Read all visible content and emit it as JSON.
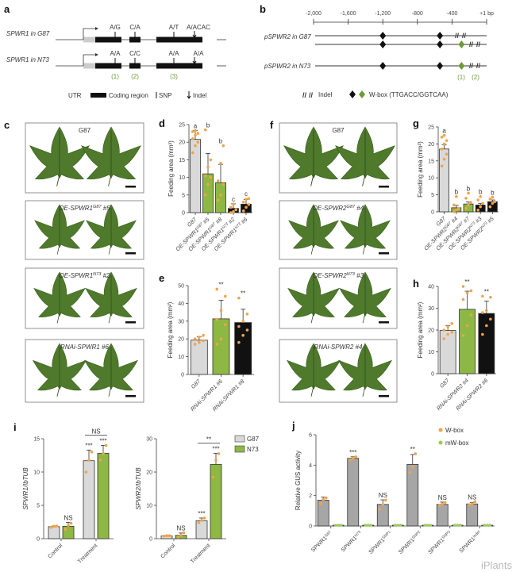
{
  "panel_a": {
    "letter": "a",
    "rows": [
      {
        "label": "SPWR1 in G87",
        "alleles": [
          "A/G",
          "C/A",
          "A/T",
          "A/ACAC"
        ]
      },
      {
        "label": "SPWR1 in N73",
        "alleles": [
          "A/A",
          "C/C",
          "A/A",
          "A/A"
        ]
      }
    ],
    "markers": [
      "(1)",
      "(2)",
      "(3)"
    ],
    "legend": {
      "utr": "UTR",
      "coding": "Coding region",
      "snp": "SNP",
      "indel": "Indel"
    }
  },
  "panel_b": {
    "letter": "b",
    "scale": [
      "-2,000",
      "-1,600",
      "-1,200",
      "-800",
      "-400",
      "+1 bp"
    ],
    "rows": [
      {
        "label": "pSPWR2 in G87"
      },
      {
        "label": "pSPWR2 in N73"
      }
    ],
    "markers": [
      "(1)",
      "(2)"
    ],
    "legend": {
      "indel": "Indel",
      "wbox": "W-box (TTGACC/GGTCAA)"
    },
    "colors": {
      "wbox_black": "#111111",
      "wbox_green": "#6e9a3a"
    }
  },
  "leaf_panels": [
    {
      "letter": "c",
      "labels": [
        {
          "t": "G87"
        },
        {
          "t": "OE-SPWR1",
          "sup": "G87",
          "s": " #5"
        },
        {
          "t": "OE-SPWR1",
          "sup": "N73",
          "s": " #2"
        },
        {
          "t": "RNAi-SPWR1 #6"
        }
      ]
    },
    {
      "letter": "f",
      "labels": [
        {
          "t": "G87"
        },
        {
          "t": "OE-SPWR2",
          "sup": "G87",
          "s": " #4"
        },
        {
          "t": "OE-SPWR2",
          "sup": "N73",
          "s": " #3"
        },
        {
          "t": "RNAi-SPWR2 #4"
        }
      ]
    }
  ],
  "legends": {
    "i": [
      {
        "label": "G87",
        "color": "#d9d9d9"
      },
      {
        "label": "N73",
        "color": "#8db843"
      }
    ],
    "j": [
      {
        "label": "W-box",
        "color": "#f0a44b"
      },
      {
        "label": "mW-box",
        "color": "#9ccb5a"
      }
    ]
  },
  "watermark": "iPlants",
  "chart_data": [
    {
      "panel": "d",
      "type": "bar",
      "ylabel": "Feeding area (mm²)",
      "ylim": [
        0,
        25
      ],
      "yticks": [
        "0",
        "5",
        "10",
        "15",
        "20",
        "25"
      ],
      "categories": [
        {
          "t": "G87"
        },
        {
          "t": "OE-SPWR1",
          "sup": "G87",
          "s": " #5"
        },
        {
          "t": "OE-SPWR1",
          "sup": "G87",
          "s": " #8"
        },
        {
          "t": "OE-SPWR1",
          "sup": "N73",
          "s": " #2"
        },
        {
          "t": "OE-SPWR1",
          "sup": "N73",
          "s": " #6"
        }
      ],
      "series": [
        {
          "name": "Feeding area",
          "colors": [
            "#d9d9d9",
            "#8db843",
            "#8db843",
            "#111111",
            "#111111"
          ],
          "values": [
            20.8,
            11.0,
            8.5,
            1.2,
            2.4
          ],
          "errors": [
            2.5,
            5.8,
            5.2,
            1.3,
            1.3
          ],
          "labels": [
            "a",
            "b",
            "b",
            "c",
            "c"
          ],
          "points": [
            [
              17,
              19,
              20,
              21,
              22,
              22.5,
              23,
              23.3
            ],
            [
              5,
              8,
              10,
              10.5,
              13,
              15,
              23.5
            ],
            [
              3.5,
              5,
              8,
              9,
              14,
              19
            ],
            [
              0,
              0.3,
              0.8,
              1.5,
              2.4
            ],
            [
              0.5,
              1.5,
              2.3,
              3,
              3.8,
              4
            ]
          ]
        }
      ]
    },
    {
      "panel": "e",
      "type": "bar",
      "ylabel": "Feeding area (mm²)",
      "ylim": [
        0,
        50
      ],
      "yticks": [
        "0",
        "10",
        "20",
        "30",
        "40",
        "50"
      ],
      "categories": [
        {
          "t": "G87"
        },
        {
          "t": "RNAi-SPWR1 #6"
        },
        {
          "t": "RNAi-SPWR1 #8"
        }
      ],
      "series": [
        {
          "name": "Feeding area",
          "colors": [
            "#d9d9d9",
            "#8db843",
            "#111111"
          ],
          "values": [
            19.3,
            31.3,
            29.2
          ],
          "errors": [
            2.0,
            10.5,
            7.5
          ],
          "labels": [
            "",
            "**",
            "**"
          ],
          "points": [
            [
              17,
              18,
              19,
              20,
              21,
              22
            ],
            [
              17,
              20,
              28,
              31,
              36,
              44,
              48
            ],
            [
              18,
              22,
              25,
              27,
              30,
              34,
              43
            ]
          ]
        }
      ]
    },
    {
      "panel": "g",
      "type": "bar",
      "ylabel": "Feeding area (mm²)",
      "ylim": [
        0,
        25
      ],
      "yticks": [
        "0",
        "5",
        "10",
        "15",
        "20",
        "25"
      ],
      "categories": [
        {
          "t": "G87"
        },
        {
          "t": "OE-SPWR2",
          "sup": "G87",
          "s": " #4"
        },
        {
          "t": "OE-SPWR2",
          "sup": "G87",
          "s": " #7"
        },
        {
          "t": "OE-SPWR2",
          "sup": "N73",
          "s": " #3"
        },
        {
          "t": "OE-SPWR2",
          "sup": "N73",
          "s": " #5"
        }
      ],
      "series": [
        {
          "name": "Feeding area",
          "colors": [
            "#d9d9d9",
            "#8db843",
            "#8db843",
            "#111111",
            "#111111"
          ],
          "values": [
            18.5,
            1.2,
            2.3,
            2.0,
            3.0
          ],
          "errors": [
            1.2,
            0.7,
            0.6,
            0.5,
            0.5
          ],
          "labels": [
            "a",
            "b",
            "b",
            "b",
            "b"
          ],
          "points": [
            [
              13.5,
              15.5,
              17,
              18.5,
              20,
              21,
              22,
              22.5
            ],
            [
              0,
              0.5,
              1,
              2,
              4.5
            ],
            [
              1,
              2,
              2.8,
              4,
              5.5
            ],
            [
              0.5,
              1.5,
              2.5,
              3.5,
              4.5
            ],
            [
              1.5,
              2.5,
              3,
              3.8,
              4.3
            ]
          ]
        }
      ]
    },
    {
      "panel": "h",
      "type": "bar",
      "ylabel": "Feeding area (mm²)",
      "ylim": [
        0,
        40
      ],
      "yticks": [
        "0",
        "10",
        "20",
        "30",
        "40"
      ],
      "categories": [
        {
          "t": "G87"
        },
        {
          "t": "RNAi-SPWR2 #4"
        },
        {
          "t": "RNAi-SPWR2 #6"
        }
      ],
      "series": [
        {
          "name": "Feeding area",
          "colors": [
            "#d9d9d9",
            "#8db843",
            "#111111"
          ],
          "values": [
            19.8,
            29.5,
            27.6
          ],
          "errors": [
            2.3,
            8.3,
            5.7
          ],
          "labels": [
            "",
            "**",
            "**"
          ],
          "points": [
            [
              16,
              18,
              19,
              20,
              21.5,
              23
            ],
            [
              17.5,
              22,
              27,
              34,
              37,
              38,
              40
            ],
            [
              18,
              22,
              25,
              28,
              29,
              35,
              35.5
            ]
          ]
        }
      ]
    },
    {
      "panel": "i",
      "type": "bar",
      "ylabel": "SPWR1/IbTUB",
      "ylim": [
        0,
        15
      ],
      "yticks": [
        "0",
        "5",
        "10",
        "15"
      ],
      "categories": [
        {
          "t": "Control"
        },
        {
          "t": "Treatment"
        }
      ],
      "series": [
        {
          "name": "G87",
          "color": "#d9d9d9",
          "values": [
            1.8,
            11.7
          ],
          "errors": [
            0.1,
            1.6
          ],
          "labels": [
            "",
            "***"
          ],
          "points": [
            [
              1.7,
              1.85,
              1.9
            ],
            [
              10,
              11.8,
              13
            ]
          ]
        },
        {
          "name": "N73",
          "color": "#8db843",
          "values": [
            1.85,
            12.8
          ],
          "errors": [
            0.6,
            1.2
          ],
          "labels": [
            "NS",
            "***"
          ],
          "points": [
            [
              1.4,
              2.0,
              2.3
            ],
            [
              11.8,
              12.8,
              14
            ]
          ]
        }
      ],
      "brackets": [
        {
          "category": 1,
          "label": "NS"
        }
      ]
    },
    {
      "panel": "i",
      "type": "bar",
      "ylabel": "SPWR2/IbTUB",
      "ylim": [
        0,
        30
      ],
      "yticks": [
        "0",
        "10",
        "20",
        "30"
      ],
      "categories": [
        {
          "t": "Control"
        },
        {
          "t": "Treatment"
        }
      ],
      "series": [
        {
          "name": "G87",
          "color": "#d9d9d9",
          "values": [
            0.8,
            5.4
          ],
          "errors": [
            0.1,
            0.8
          ],
          "labels": [
            "",
            "***"
          ],
          "points": [
            [
              0.8,
              0.9,
              0.9
            ],
            [
              4.8,
              5.5,
              6.2
            ]
          ]
        },
        {
          "name": "N73",
          "color": "#8db843",
          "values": [
            1.0,
            22.3
          ],
          "errors": [
            0.7,
            3.3
          ],
          "labels": [
            "NS",
            "***"
          ],
          "points": [
            [
              0.5,
              1.0,
              1.8
            ],
            [
              18.5,
              23.5,
              25.5
            ]
          ]
        }
      ],
      "brackets": [
        {
          "category": 1,
          "label": "**"
        }
      ]
    },
    {
      "panel": "j",
      "type": "bar",
      "ylabel": "Relative GUS activity",
      "ylim": [
        0,
        6
      ],
      "yticks": [
        "0",
        "2",
        "4",
        "6"
      ],
      "categories": [
        {
          "t": "SPWR1",
          "sup": "G87"
        },
        {
          "t": "SPWR1",
          "sup": "N73"
        },
        {
          "t": "SPWR1",
          "sup": "SNP1"
        },
        {
          "t": "SPWR1",
          "sup": "SNP2"
        },
        {
          "t": "SPWR1",
          "sup": "SNP3"
        },
        {
          "t": "SPWR1",
          "sup": "Indel"
        }
      ],
      "series": [
        {
          "name": "W-box",
          "color": "#a6a6a6",
          "point_color": "#f0a44b",
          "values": [
            1.7,
            4.45,
            1.42,
            4.05,
            1.42,
            1.45
          ],
          "errors": [
            0.2,
            0.1,
            0.3,
            0.65,
            0.15,
            0.1
          ],
          "labels": [
            "",
            "***",
            "NS",
            "**",
            "NS",
            "NS"
          ],
          "points": [
            [
              1.45,
              1.75,
              1.85
            ],
            [
              4.35,
              4.45,
              4.55
            ],
            [
              1.1,
              1.4,
              1.7
            ],
            [
              3.5,
              3.9,
              4.75
            ],
            [
              1.35,
              1.45,
              1.55
            ],
            [
              1.4,
              1.45,
              1.6
            ]
          ]
        },
        {
          "name": "mW-box",
          "color": "#a6a6a6",
          "point_color": "#9ccb5a",
          "values": [
            0.05,
            0.05,
            0.05,
            0.05,
            0.05,
            0.05
          ],
          "errors": [
            0,
            0,
            0,
            0,
            0,
            0
          ],
          "labels": [
            "",
            "",
            "",
            "",
            "",
            ""
          ],
          "points": [
            [
              0.05,
              0.05,
              0.05
            ],
            [
              0.05,
              0.05,
              0.05
            ],
            [
              0.05,
              0.05,
              0.05
            ],
            [
              0.05,
              0.05,
              0.05
            ],
            [
              0.05,
              0.05,
              0.05
            ],
            [
              0.05,
              0.05,
              0.05
            ]
          ]
        }
      ]
    }
  ]
}
